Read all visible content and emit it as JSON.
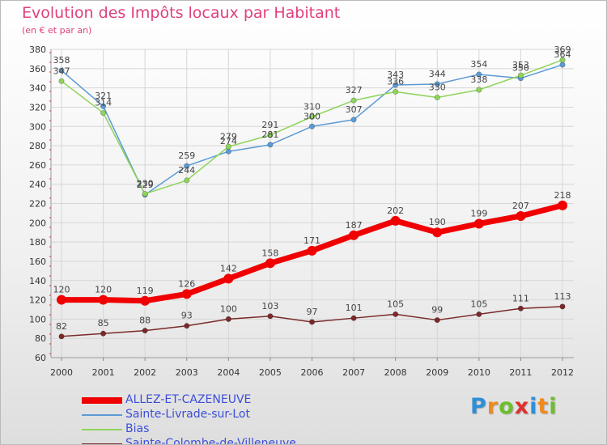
{
  "header": {
    "title": "Evolution des Impôts locaux par Habitant",
    "subtitle": "(en € et par an)"
  },
  "logo": {
    "letters": [
      "P",
      "r",
      "o",
      "x",
      "i",
      "t",
      "i"
    ],
    "colors": [
      "#2f8fd6",
      "#f08a1c",
      "#6cbf2a",
      "#e02f2f",
      "#2f8fd6",
      "#f08a1c",
      "#6cbf2a"
    ]
  },
  "chart_data": {
    "type": "line",
    "title": "Evolution des Impôts locaux par Habitant",
    "subtitle": "(en € et par an)",
    "xlabel": "",
    "ylabel": "",
    "x": [
      "2000",
      "2001",
      "2002",
      "2003",
      "2004",
      "2005",
      "2006",
      "2007",
      "2008",
      "2009",
      "2010",
      "2011",
      "2012"
    ],
    "ylim": [
      60,
      380
    ],
    "yticks": [
      60,
      80,
      100,
      120,
      140,
      160,
      180,
      200,
      220,
      240,
      260,
      280,
      300,
      320,
      340,
      360,
      380
    ],
    "grid": true,
    "legend_position": "bottom-left",
    "series": [
      {
        "name": "ALLEZ-ET-CAZENEUVE",
        "color": "#f00000",
        "thick": true,
        "values": [
          120,
          120,
          119,
          126,
          142,
          158,
          171,
          187,
          202,
          190,
          199,
          207,
          218
        ]
      },
      {
        "name": "Sainte-Livrade-sur-Lot",
        "color": "#5b9bd5",
        "thick": false,
        "values": [
          358,
          321,
          229,
          259,
          274,
          281,
          300,
          307,
          343,
          344,
          354,
          350,
          364
        ]
      },
      {
        "name": "Bias",
        "color": "#8fd45a",
        "thick": false,
        "values": [
          347,
          314,
          230,
          244,
          279,
          291,
          310,
          327,
          336,
          330,
          338,
          353,
          369
        ]
      },
      {
        "name": "Sainte-Colombe-de-Villeneuve",
        "color": "#7a2a2a",
        "thick": false,
        "values": [
          82,
          85,
          88,
          93,
          100,
          103,
          97,
          101,
          105,
          99,
          105,
          111,
          113
        ]
      }
    ]
  }
}
